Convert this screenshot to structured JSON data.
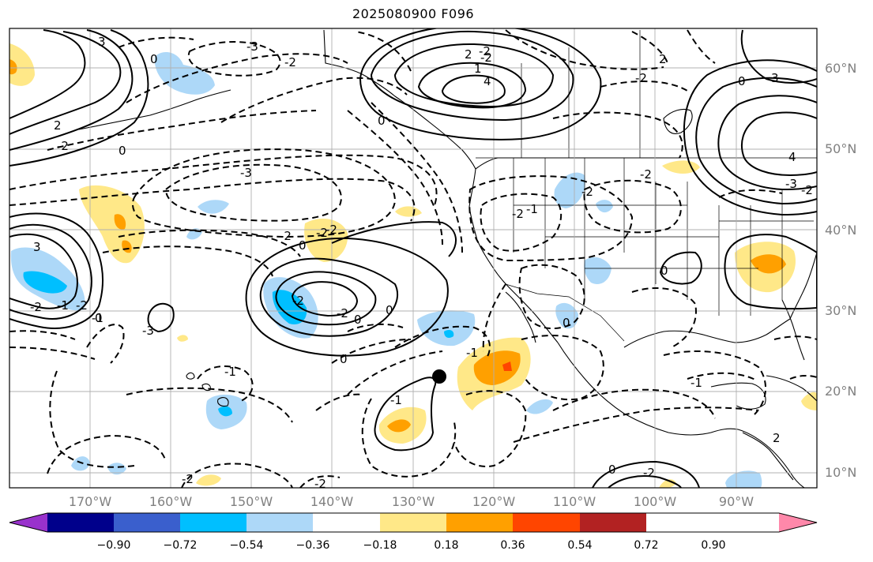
{
  "title": "2025080900 F096",
  "map": {
    "lat_labels": [
      "60°N",
      "50°N",
      "40°N",
      "30°N",
      "20°N",
      "10°N"
    ],
    "lon_labels": [
      "170°W",
      "160°W",
      "150°W",
      "140°W",
      "130°W",
      "120°W",
      "110°W",
      "100°W",
      "90°W"
    ],
    "contour_labels": [
      "3",
      "0",
      "-3",
      "-2",
      "2",
      "-3",
      "-2",
      "0",
      "3",
      "-2",
      "-1",
      "-2",
      "-1",
      "-2",
      "0",
      "-2",
      "-2",
      "-2",
      "0",
      "2",
      "4",
      "-2",
      "1",
      "-2",
      "0",
      "-2",
      "4",
      "-3",
      "-2",
      "0",
      "3",
      "2",
      "-2",
      "-2",
      "-2",
      "-2",
      "-1",
      "0",
      "-1",
      "0",
      "0",
      "-1",
      "0",
      "-1",
      "-2",
      "-2",
      "0",
      "-1",
      "0",
      "2",
      "-3",
      "-2"
    ]
  },
  "colorbar": {
    "ticks": [
      "−0.90",
      "−0.72",
      "−0.54",
      "−0.36",
      "−0.18",
      "0.18",
      "0.36",
      "0.54",
      "0.72",
      "0.90"
    ],
    "colors": [
      "#9932cc",
      "#00008b",
      "#3a5fcd",
      "#00bfff",
      "#add8f8",
      "#ffffff",
      "#ffe888",
      "#ffa000",
      "#ff4500",
      "#b22222",
      "#ff88aa"
    ]
  },
  "colors": {
    "pos_light": "#ffe888",
    "pos_mid": "#ffa000",
    "pos_strong": "#ff4500",
    "neg_light": "#add8f8",
    "neg_mid": "#00bfff",
    "grid": "#b0b0b0"
  },
  "markers": [
    {
      "name": "storm-center",
      "lon": -126.5,
      "lat": 21.8
    }
  ]
}
